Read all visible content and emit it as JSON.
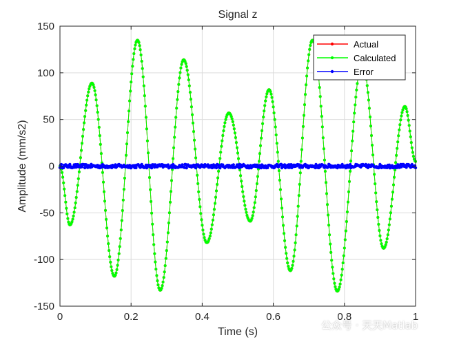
{
  "chart_data": {
    "type": "line",
    "title": "Signal z",
    "xlabel": "Time (s)",
    "ylabel": "Amplitude (mm/s2)",
    "xlim": [
      0,
      1
    ],
    "ylim": [
      -150,
      150
    ],
    "x_ticks": [
      "0",
      "0.2",
      "0.4",
      "0.6",
      "0.8",
      "1"
    ],
    "y_ticks": [
      "150",
      "100",
      "50",
      "0",
      "-50",
      "-100",
      "-150"
    ],
    "grid": true,
    "legend_position": "top-right",
    "series": [
      {
        "name": "Actual",
        "color": "#ff0000",
        "x": [
          0,
          0.028,
          0.09,
          0.153,
          0.218,
          0.282,
          0.348,
          0.413,
          0.475,
          0.535,
          0.588,
          0.648,
          0.71,
          0.78,
          0.85,
          0.91,
          0.97,
          1.0
        ],
        "values": [
          0,
          -63,
          89,
          -118,
          135,
          -133,
          114,
          -82,
          57,
          -59,
          82,
          -112,
          135,
          -134,
          112,
          -88,
          64,
          5
        ]
      },
      {
        "name": "Calculated",
        "color": "#00ff00",
        "x": [
          0,
          0.028,
          0.09,
          0.153,
          0.218,
          0.282,
          0.348,
          0.413,
          0.475,
          0.535,
          0.588,
          0.648,
          0.71,
          0.78,
          0.85,
          0.91,
          0.97,
          1.0
        ],
        "values": [
          0,
          -63,
          89,
          -118,
          135,
          -133,
          114,
          -82,
          57,
          -59,
          82,
          -112,
          135,
          -134,
          112,
          -88,
          64,
          5
        ]
      },
      {
        "name": "Error",
        "color": "#0000ff",
        "x": [
          0,
          1
        ],
        "values": [
          0,
          0
        ],
        "noise_amplitude": 2
      }
    ]
  },
  "watermark": {
    "text": "公众号 · 天天Matlab"
  }
}
